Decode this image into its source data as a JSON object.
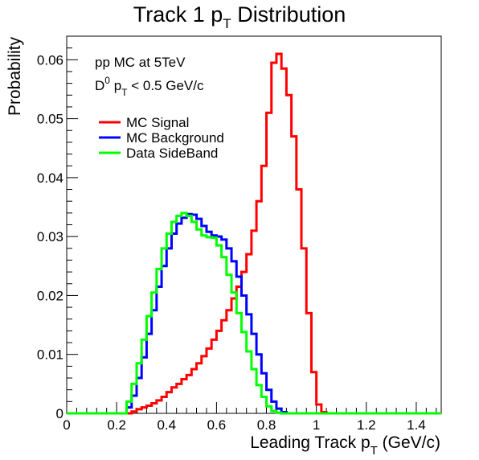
{
  "chart_data": {
    "type": "line",
    "title": {
      "main": "Track 1 p",
      "sub": "T",
      "rest": " Distribution"
    },
    "xlabel": {
      "main": "Leading Track p",
      "sub": "T",
      "rest": " (GeV/c)"
    },
    "ylabel": "Probability",
    "xlim": [
      0,
      1.5
    ],
    "ylim": [
      0,
      0.064
    ],
    "x_ticks": [
      0,
      0.2,
      0.4,
      0.6,
      0.8,
      1,
      1.2,
      1.4
    ],
    "x_tick_labels": [
      "0",
      "0.2",
      "0.4",
      "0.6",
      "0.8",
      "1",
      "1.2",
      "1.4"
    ],
    "y_ticks": [
      0,
      0.01,
      0.02,
      0.03,
      0.04,
      0.05,
      0.06
    ],
    "y_tick_labels": [
      "0",
      "0.01",
      "0.02",
      "0.03",
      "0.04",
      "0.05",
      "0.06"
    ],
    "annotations": {
      "line1": "pp MC at 5TeV",
      "line2_pre": "D",
      "line2_sup": "0",
      "line2_mid": " p",
      "line2_sub": "T",
      "line2_rest": " < 0.5 GeV/c"
    },
    "legend_position": "top-left",
    "bin_width": 0.02,
    "series": [
      {
        "name": "MC Signal",
        "color": "#ff0000",
        "bin_edges_start": 0.26,
        "values": [
          0.0003,
          0.0007,
          0.001,
          0.0013,
          0.0017,
          0.0022,
          0.0028,
          0.0036,
          0.0044,
          0.005,
          0.0058,
          0.0065,
          0.0075,
          0.0085,
          0.0097,
          0.011,
          0.0125,
          0.014,
          0.0158,
          0.0175,
          0.0195,
          0.0215,
          0.024,
          0.027,
          0.031,
          0.036,
          0.042,
          0.051,
          0.0595,
          0.061,
          0.0585,
          0.054,
          0.047,
          0.038,
          0.028,
          0.017,
          0.007,
          0.0015,
          0.0002
        ]
      },
      {
        "name": "MC Background",
        "color": "#0000ff",
        "bin_edges_start": 0.24,
        "values": [
          0.001,
          0.003,
          0.006,
          0.0095,
          0.0135,
          0.0175,
          0.0215,
          0.025,
          0.028,
          0.0305,
          0.0322,
          0.0332,
          0.0338,
          0.0337,
          0.033,
          0.0318,
          0.0308,
          0.0302,
          0.03,
          0.0295,
          0.028,
          0.0258,
          0.0232,
          0.02,
          0.0168,
          0.0135,
          0.01,
          0.0068,
          0.004,
          0.002,
          0.0008,
          0.0002
        ]
      },
      {
        "name": "Data SideBand",
        "color": "#00ff00",
        "bin_edges_start": 0.24,
        "values": [
          0.002,
          0.005,
          0.0085,
          0.0125,
          0.0165,
          0.0205,
          0.0245,
          0.028,
          0.0305,
          0.0325,
          0.0335,
          0.034,
          0.0335,
          0.0325,
          0.0312,
          0.0302,
          0.0299,
          0.0298,
          0.0285,
          0.0265,
          0.0235,
          0.0205,
          0.017,
          0.0138,
          0.0105,
          0.0075,
          0.0048,
          0.0028,
          0.0012,
          0.0004,
          0.0001
        ]
      }
    ]
  }
}
